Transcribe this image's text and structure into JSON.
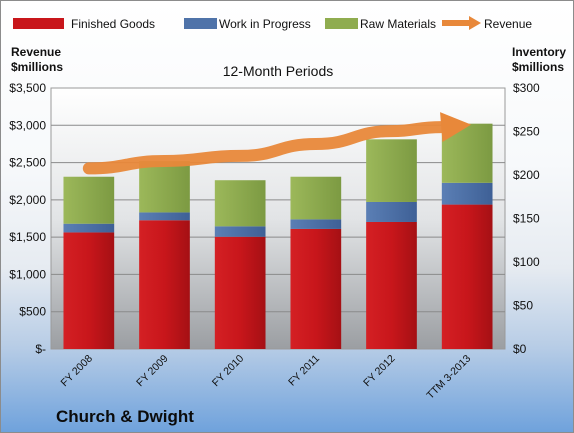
{
  "chart_data": {
    "type": "bar",
    "stacked": true,
    "subtitle": "12-Month Periods",
    "company": "Church & Dwight",
    "categories": [
      "FY 2008",
      "FY 2009",
      "FY 2010",
      "FY 2011",
      "FY 2012",
      "TTM 3-2013"
    ],
    "left_axis": {
      "title_line1": "Revenue",
      "title_line2": "$millions",
      "range": [
        0,
        3500
      ],
      "ticks": [
        0,
        500,
        1000,
        1500,
        2000,
        2500,
        3000,
        3500
      ],
      "tick_labels": [
        "$-",
        "$500",
        "$1,000",
        "$1,500",
        "$2,000",
        "$2,500",
        "$3,000",
        "$3,500"
      ]
    },
    "right_axis": {
      "title_line1": "Inventory",
      "title_line2": "$millions",
      "range": [
        0,
        300
      ],
      "ticks": [
        0,
        50,
        100,
        150,
        200,
        250,
        300
      ],
      "tick_labels": [
        "$0",
        "$50",
        "$100",
        "$150",
        "$200",
        "$250",
        "$300"
      ]
    },
    "series": [
      {
        "name": "Finished Goods",
        "kind": "bar",
        "axis": "right",
        "color": "#c8161b",
        "values": [
          134,
          148,
          129,
          138,
          146,
          166
        ]
      },
      {
        "name": "Work in Progress",
        "kind": "bar",
        "axis": "right",
        "color": "#4f73a9",
        "values": [
          10,
          9,
          12,
          11,
          23,
          25
        ]
      },
      {
        "name": "Raw Materials",
        "kind": "bar",
        "axis": "right",
        "color": "#8fac4f",
        "values": [
          54,
          59,
          53,
          49,
          72,
          68
        ]
      },
      {
        "name": "Revenue",
        "kind": "line-arrow",
        "axis": "left",
        "color": "#e8883a",
        "values": [
          2422,
          2521,
          2589,
          2749,
          2922,
          3004
        ]
      }
    ],
    "grid": true,
    "legend_position": "top"
  }
}
